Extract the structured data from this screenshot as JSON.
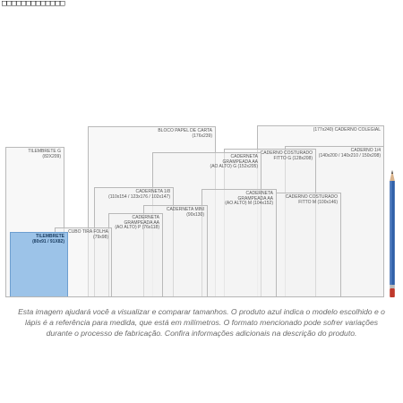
{
  "header": {
    "glyphs": "□□□□□□□□□□□□□"
  },
  "notebooks": [
    {
      "id": "tilembrete-g",
      "label": "TILEMBRETE G\n(82X209)",
      "selected": false
    },
    {
      "id": "bloco-carta",
      "label": "BLOCO PAPEL DE CARTA\n(176x239)",
      "selected": false
    },
    {
      "id": "colegial",
      "label": "(177x240) CADERNO COLEGIAL",
      "selected": false
    },
    {
      "id": "caderno-1-4",
      "label": "CADERNO 1/4\n(140x200 / 140x210 / 150x208)",
      "selected": false
    },
    {
      "id": "costurado-g",
      "label": "CADERNO COSTURADO\nFITTO G (128x208)",
      "selected": false
    },
    {
      "id": "grampeada-g",
      "label": "CADERNETA\nGRAMPEADA AA\n(AO ALTO) G (152x205)",
      "selected": false
    },
    {
      "id": "caderneta-1-8",
      "label": "CADERNETA 1/8\n(110x154 / 123x176 / 102x147)",
      "selected": false
    },
    {
      "id": "grampeada-m",
      "label": "CADERNETA\nGRAMPEADA AA\n(AO ALTO) M (104x152)",
      "selected": false
    },
    {
      "id": "costurado-m",
      "label": "CADERNO COSTURADO\nFITTO M (100x146)",
      "selected": false
    },
    {
      "id": "caderneta-mini",
      "label": "CADERNETA MINI\n(90x130)",
      "selected": false
    },
    {
      "id": "grampeada-p",
      "label": "CADERNETA\nGRAMPEADA AA\n(AO ALTO) P (76x118)",
      "selected": false
    },
    {
      "id": "cubo-tira",
      "label": "CUBO TIRA FOLHA\n(79x98)",
      "selected": false
    },
    {
      "id": "tilembrete-blue",
      "label": "TILEMBRETE\n(80x91 / 91X82)",
      "selected": true
    }
  ],
  "pencil": {
    "icon": "pencil-icon",
    "body_color": "#2f5fa8",
    "tip_color": "#c0392b"
  },
  "caption": "Esta imagem ajudará você a visualizar e comparar tamanhos. O produto azul indica o modelo escolhido e o lápis é a referência para medida, que está em milímetros. O formato mencionado pode sofrer variações durante o processo de fabricação. Confira informações adicionais na descrição do produto."
}
